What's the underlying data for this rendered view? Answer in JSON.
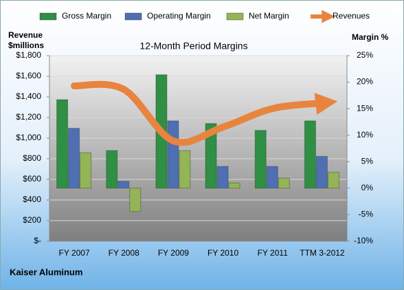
{
  "chart_data": {
    "type": "bar",
    "title": "12-Month Period Margins",
    "y_label": "Revenue $millions",
    "y2_label": "Margin %",
    "footer": "Kaiser Aluminum",
    "categories": [
      "FY 2007",
      "FY 2008",
      "FY 2009",
      "FY 2010",
      "FY 2011",
      "TTM 3-2012"
    ],
    "series": [
      {
        "name": "Gross Margin",
        "type": "bar",
        "axis": "y2",
        "color": "#2f8f45",
        "values": [
          16.7,
          7.1,
          21.4,
          12.2,
          10.9,
          12.7
        ]
      },
      {
        "name": "Operating Margin",
        "type": "bar",
        "axis": "y2",
        "color": "#4f6fb3",
        "values": [
          11.3,
          1.3,
          12.7,
          4.1,
          4.1,
          6.0
        ]
      },
      {
        "name": "Net Margin",
        "type": "bar",
        "axis": "y2",
        "color": "#93b457",
        "values": [
          6.7,
          -4.4,
          7.1,
          1.0,
          1.9,
          3.0
        ]
      },
      {
        "name": "Revenues",
        "type": "line",
        "axis": "y",
        "color": "#e8843e",
        "values": [
          1507,
          1473,
          973,
          1107,
          1287,
          1340
        ]
      }
    ],
    "ylim": [
      0,
      1800
    ],
    "yticks": [
      {
        "value": 0,
        "label": "$-"
      },
      {
        "value": 200,
        "label": "$200"
      },
      {
        "value": 400,
        "label": "$400"
      },
      {
        "value": 600,
        "label": "$600"
      },
      {
        "value": 800,
        "label": "$800"
      },
      {
        "value": 1000,
        "label": "$1,000"
      },
      {
        "value": 1200,
        "label": "$1,200"
      },
      {
        "value": 1400,
        "label": "$1,400"
      },
      {
        "value": 1600,
        "label": "$1,600"
      },
      {
        "value": 1800,
        "label": "$1,800"
      }
    ],
    "y2lim": [
      -10,
      25
    ],
    "y2ticks": [
      {
        "value": -10,
        "label": "-10%"
      },
      {
        "value": -5,
        "label": "-5%"
      },
      {
        "value": 0,
        "label": "0%"
      },
      {
        "value": 5,
        "label": "5%"
      },
      {
        "value": 10,
        "label": "10%"
      },
      {
        "value": 15,
        "label": "15%"
      },
      {
        "value": 20,
        "label": "20%"
      },
      {
        "value": 25,
        "label": "25%"
      }
    ],
    "grid": true,
    "legend": "top"
  }
}
